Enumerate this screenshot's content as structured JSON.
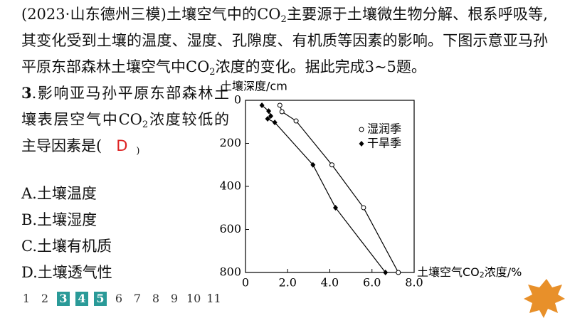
{
  "intro": [
    "(2023·山东德州三模)土壤空气中的CO",
    "2",
    "主要源于土壤微生物分解、根系呼吸等,其变化受到土壤的温度、湿度、孔隙度、有机质等因素的影响。下图示意亚马孙平原东部森林土壤空气中CO",
    "2",
    "浓度的变化。据此完成3~5题。"
  ],
  "question": {
    "number": "3",
    "text": [
      ".影响亚马孙平原东部森林土壤表层空气中CO",
      "2",
      "浓度较低的主导因素是(",
      ")"
    ],
    "answer": "D",
    "options": [
      "A.土壤温度",
      "B.土壤湿度",
      "C.土壤有机质",
      "D.土壤透气性"
    ]
  },
  "pager": {
    "pages": [
      "1",
      "2",
      "3",
      "4",
      "5",
      "6",
      "7",
      "8",
      "9",
      "10",
      "11"
    ],
    "highlighted": [
      "3",
      "4",
      "5"
    ],
    "highlight_color": "#2a9a98"
  },
  "chart_data": {
    "type": "scatter",
    "y_title": "土壤深度/cm",
    "x_title": [
      "土壤空气CO",
      "2",
      "浓度/%"
    ],
    "xlim": [
      0,
      8
    ],
    "xticks": [
      0,
      {
        "value": 2,
        "label": "2.0"
      },
      {
        "value": 4,
        "label": "4.0"
      },
      {
        "value": 6,
        "label": "6.0"
      },
      {
        "value": 8,
        "label": "8.0"
      }
    ],
    "ylim": [
      0,
      800
    ],
    "yticks": [
      0,
      200,
      400,
      600,
      800
    ],
    "y_inverted": true,
    "series": [
      {
        "name": "湿润季",
        "marker": "circle",
        "color": "#000000",
        "x": [
          1.63,
          1.73,
          2.4,
          4.1,
          5.6,
          7.25
        ],
        "values": [
          23,
          53,
          96,
          300,
          499,
          800
        ]
      },
      {
        "name": "干旱季",
        "marker": "diamond",
        "color": "#000000",
        "x": [
          0.78,
          1.1,
          1.2,
          1.05,
          1.39,
          3.2,
          4.27,
          6.64
        ],
        "values": [
          23,
          50,
          73,
          86,
          103,
          300,
          499,
          800
        ]
      }
    ]
  }
}
